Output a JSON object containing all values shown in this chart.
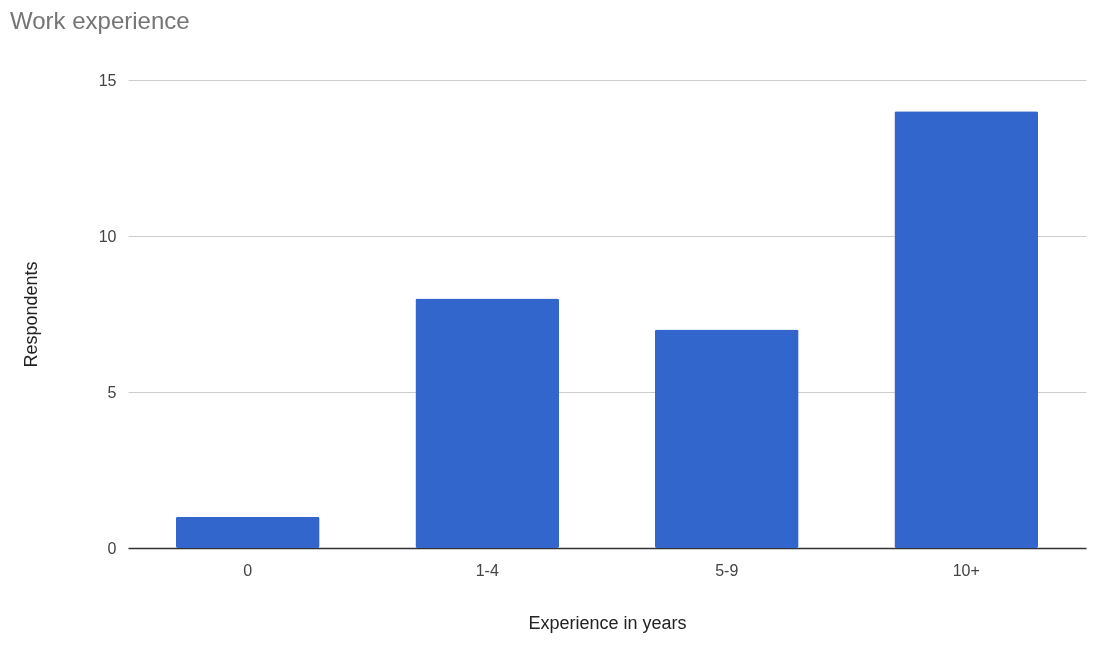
{
  "chart_data": {
    "type": "bar",
    "title": "Work experience",
    "xlabel": "Experience in years",
    "ylabel": "Respondents",
    "categories": [
      "0",
      "1-4",
      "5-9",
      "10+"
    ],
    "values": [
      1,
      8,
      7,
      14
    ],
    "color": "#3366cc",
    "ylim": [
      0,
      15
    ],
    "yticks": [
      0,
      5,
      10,
      15
    ],
    "grid": "y"
  }
}
